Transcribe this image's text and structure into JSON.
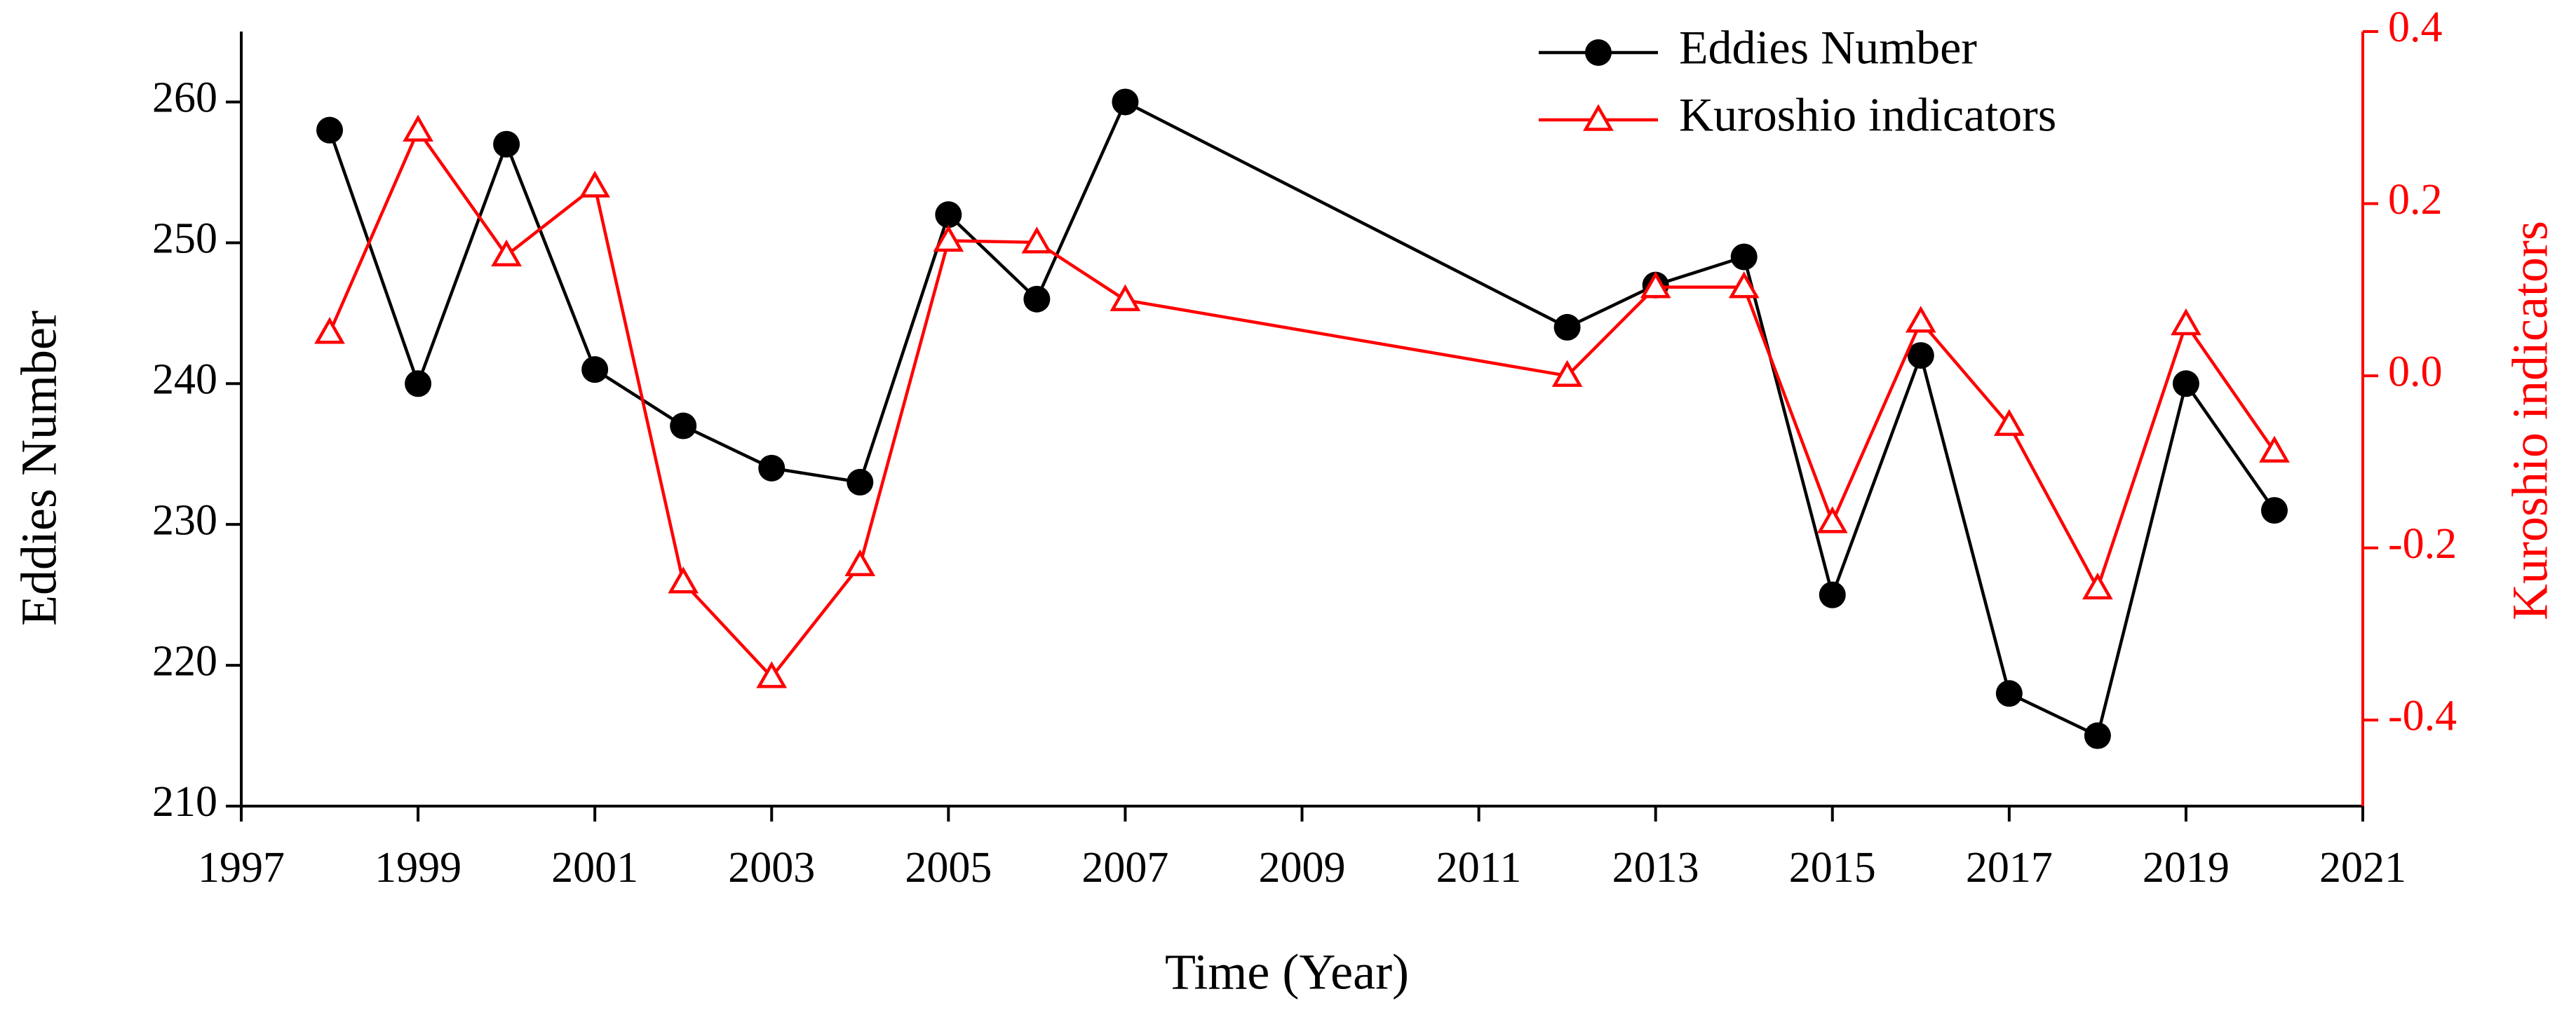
{
  "chart_data": {
    "type": "line",
    "x_label": "Time (Year)",
    "y_label": "Eddies Number",
    "y2_label": "Kuroshio indicators",
    "x": [
      1998,
      1999,
      2000,
      2001,
      2002,
      2003,
      2004,
      2005,
      2006,
      2007,
      2012,
      2013,
      2014,
      2015,
      2016,
      2017,
      2018,
      2019,
      2020
    ],
    "series": [
      {
        "name": "Eddies Number",
        "color": "#000000",
        "marker": "circle",
        "values": [
          258,
          240,
          257,
          241,
          237,
          234,
          233,
          252,
          246,
          260,
          244,
          247,
          249,
          225,
          242,
          218,
          215,
          240,
          231
        ]
      },
      {
        "name": "Kuroshio indicators",
        "color": "#ff0000",
        "marker": "triangle",
        "axis": "y2",
        "values": [
          0.05,
          0.285,
          0.14,
          0.22,
          -0.24,
          -0.35,
          -0.22,
          0.157,
          0.155,
          0.088,
          0.0,
          0.103,
          0.103,
          -0.17,
          0.063,
          -0.057,
          -0.247,
          0.06,
          -0.088
        ]
      }
    ],
    "xlim": [
      1997,
      2021
    ],
    "xticks": [
      1997,
      1999,
      2001,
      2003,
      2005,
      2007,
      2009,
      2011,
      2013,
      2015,
      2017,
      2019,
      2021
    ],
    "ylim": [
      210,
      265
    ],
    "yticks": [
      210,
      220,
      230,
      240,
      250,
      260
    ],
    "y2lim": [
      -0.5,
      0.4
    ],
    "y2ticks": [
      -0.4,
      -0.2,
      {
        "value": 0,
        "label": "0.0"
      },
      0.2,
      0.4
    ],
    "grid": false,
    "legend": "upper right"
  }
}
